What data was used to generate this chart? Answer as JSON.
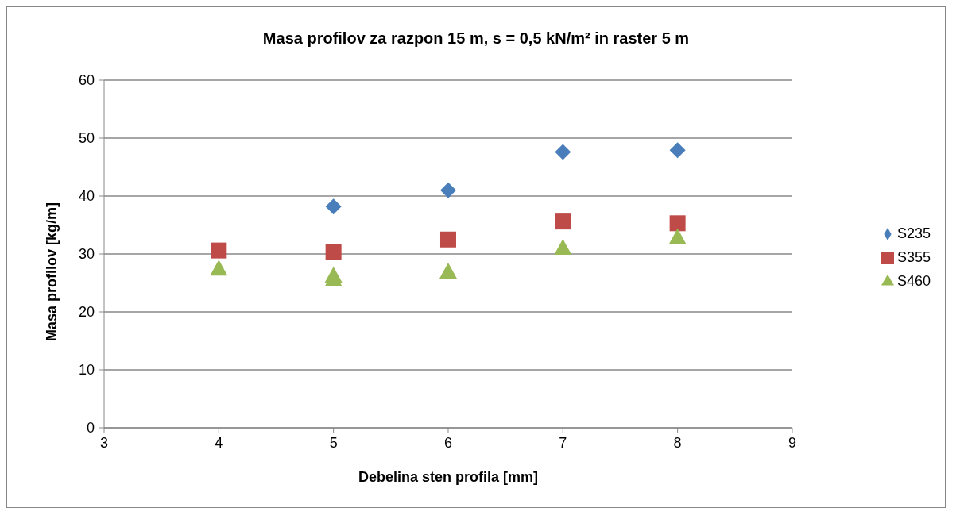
{
  "chart_data": {
    "type": "scatter",
    "title": "Masa profilov za razpon 15 m, s = 0,5 kN/m² in raster 5 m",
    "xlabel": "Debelina sten profila [mm]",
    "ylabel": "Masa profilov [kg/m]",
    "series": [
      {
        "name": "S235",
        "color": "#4a7ebb",
        "marker": "diamond",
        "x": [
          5,
          6,
          7,
          8
        ],
        "values": [
          38.2,
          41.0,
          47.6,
          47.9
        ]
      },
      {
        "name": "S355",
        "color": "#be4b48",
        "marker": "square",
        "x": [
          4,
          5,
          6,
          7,
          8
        ],
        "values": [
          30.6,
          30.3,
          32.5,
          35.6,
          35.3
        ]
      },
      {
        "name": "S460",
        "color": "#98b954",
        "marker": "triangle",
        "x": [
          4,
          5,
          5,
          6,
          7,
          8
        ],
        "values": [
          27.5,
          26.3,
          25.6,
          27.0,
          31.1,
          32.9
        ]
      }
    ],
    "xlim": [
      3,
      9
    ],
    "xticks": [
      3,
      4,
      5,
      6,
      7,
      8,
      9
    ],
    "ylim": [
      0,
      60
    ],
    "yticks": [
      0,
      10,
      20,
      30,
      40,
      50,
      60
    ],
    "grid": "y",
    "legend": "right"
  }
}
